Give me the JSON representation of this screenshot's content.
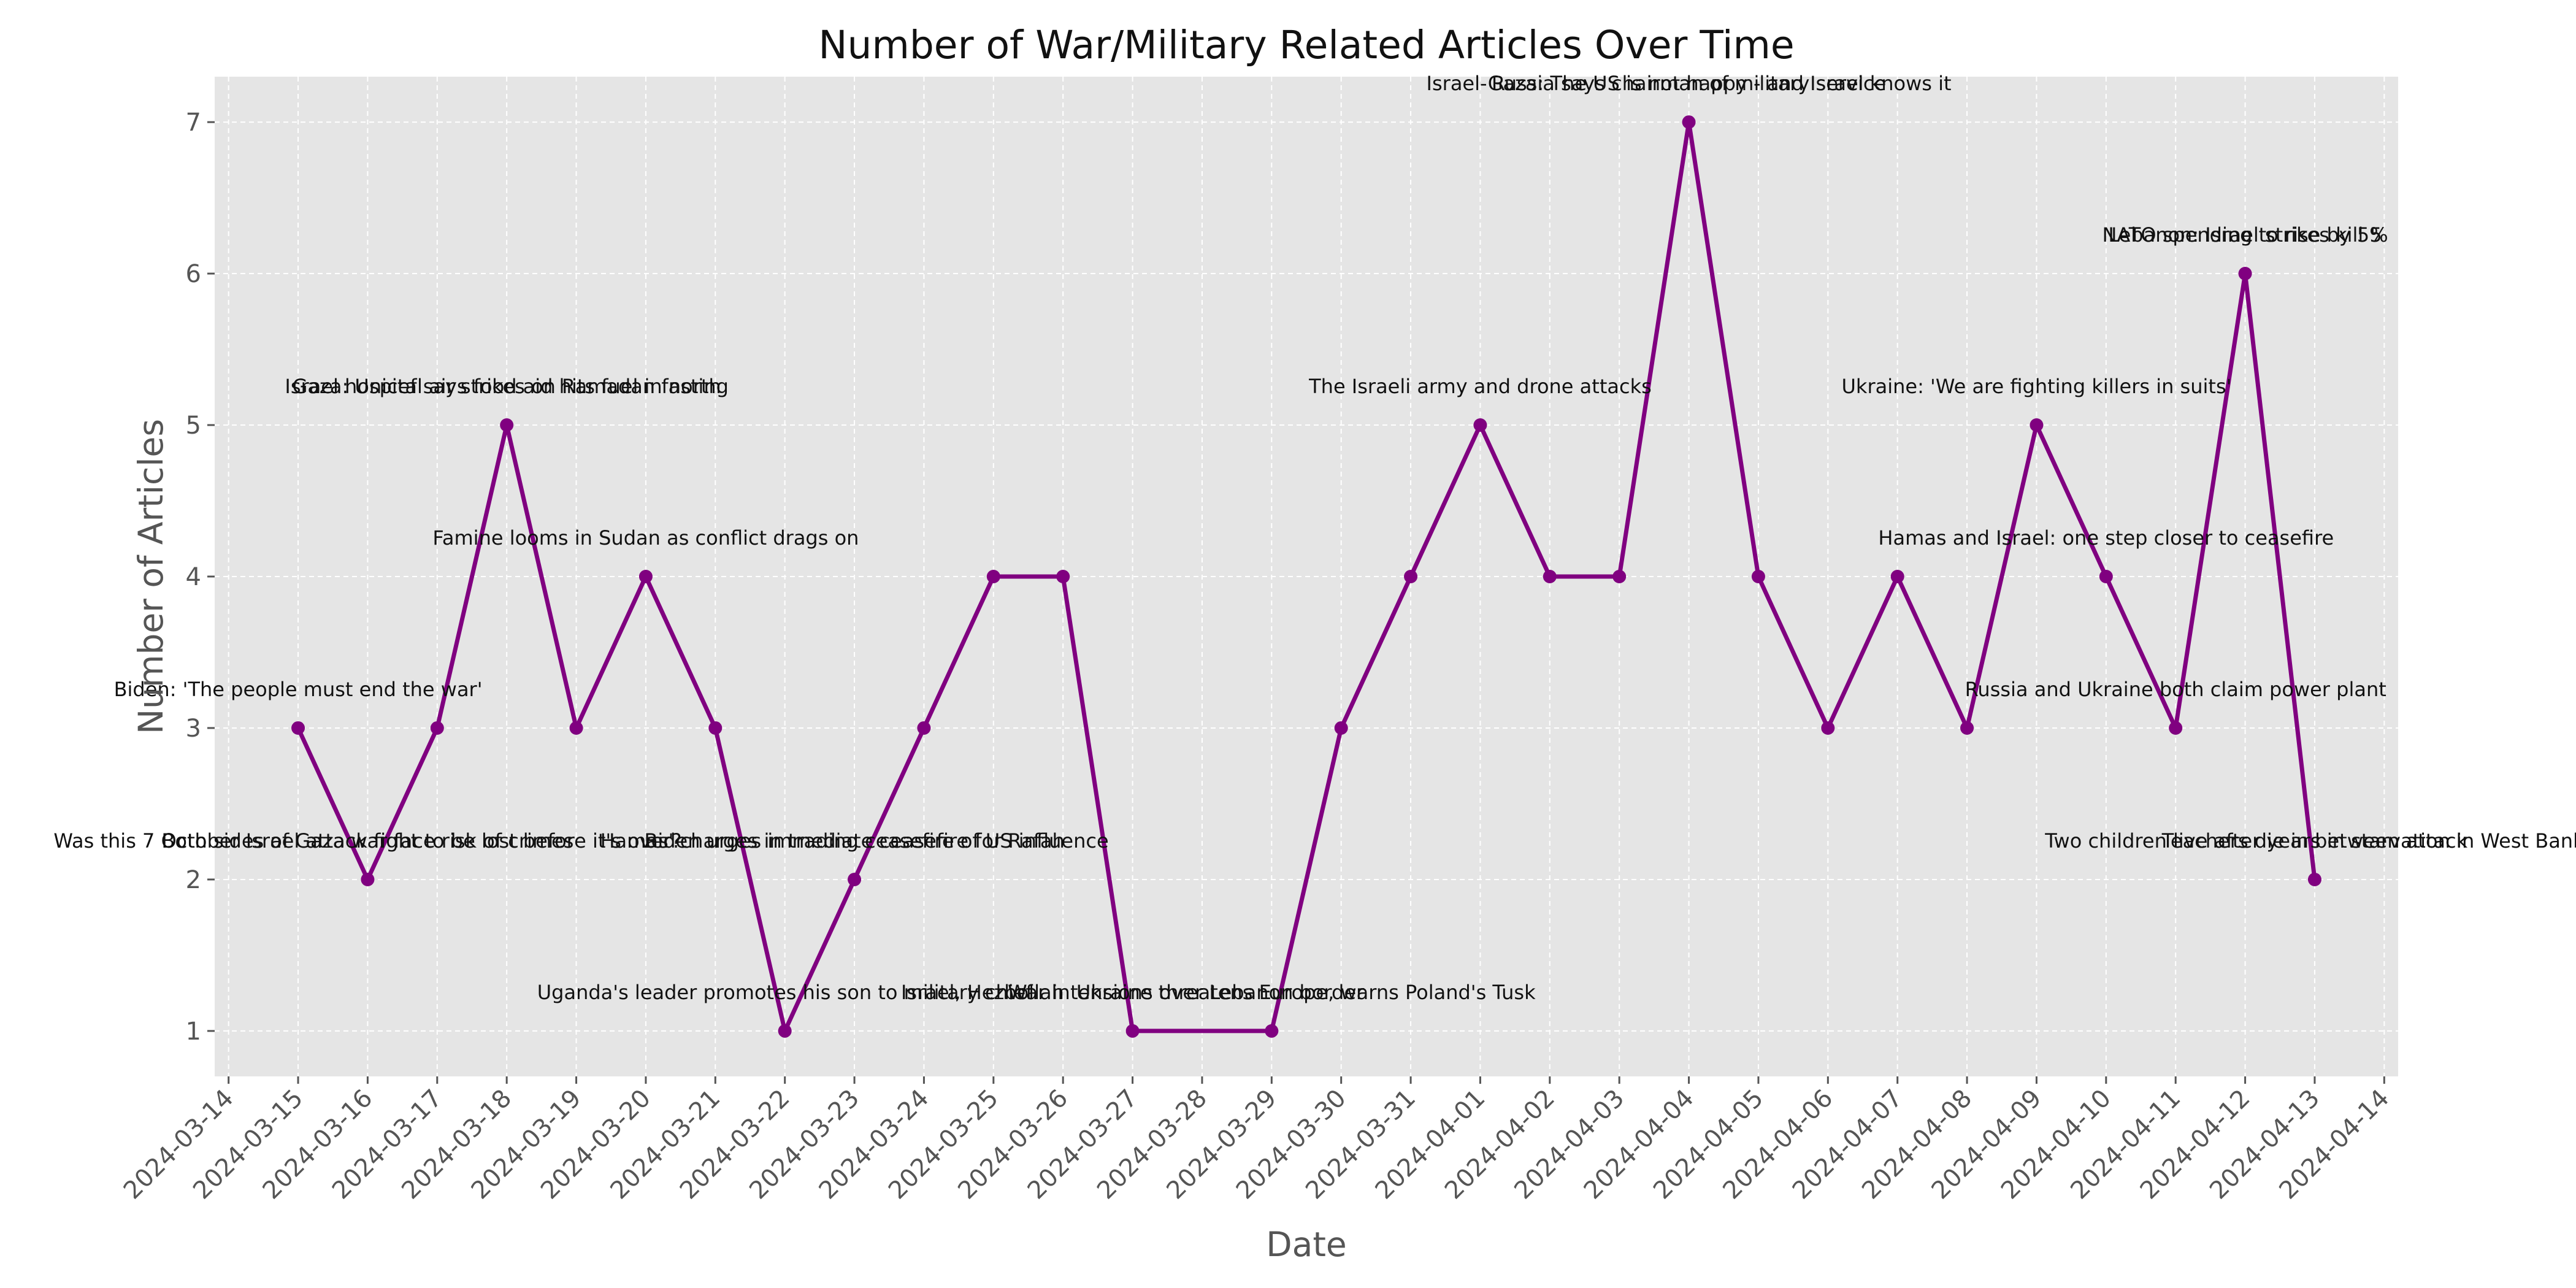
{
  "chart_data": {
    "type": "line",
    "title": "Number of War/Military Related Articles Over Time",
    "xlabel": "Date",
    "ylabel": "Number of Articles",
    "grid": true,
    "background": "#e5e5e5",
    "line_color": "#800080",
    "yticks": [
      1,
      2,
      3,
      4,
      5,
      6,
      7
    ],
    "ylim": [
      0.7,
      7.3
    ],
    "xlim": [
      "2024-03-13.8",
      "2024-04-14.2"
    ],
    "xticks": [
      "2024-03-14",
      "2024-03-15",
      "2024-03-16",
      "2024-03-17",
      "2024-03-18",
      "2024-03-19",
      "2024-03-20",
      "2024-03-21",
      "2024-03-22",
      "2024-03-23",
      "2024-03-24",
      "2024-03-25",
      "2024-03-26",
      "2024-03-27",
      "2024-03-28",
      "2024-03-29",
      "2024-03-30",
      "2024-03-31",
      "2024-04-01",
      "2024-04-02",
      "2024-04-03",
      "2024-04-04",
      "2024-04-05",
      "2024-04-06",
      "2024-04-07",
      "2024-04-08",
      "2024-04-09",
      "2024-04-10",
      "2024-04-11",
      "2024-04-12",
      "2024-04-13",
      "2024-04-14"
    ],
    "points": [
      {
        "x": "2024-03-15",
        "y": 3
      },
      {
        "x": "2024-03-16",
        "y": 2
      },
      {
        "x": "2024-03-17",
        "y": 3
      },
      {
        "x": "2024-03-18",
        "y": 5
      },
      {
        "x": "2024-03-19",
        "y": 3
      },
      {
        "x": "2024-03-20",
        "y": 4
      },
      {
        "x": "2024-03-21",
        "y": 3
      },
      {
        "x": "2024-03-22",
        "y": 1
      },
      {
        "x": "2024-03-23",
        "y": 2
      },
      {
        "x": "2024-03-24",
        "y": 3
      },
      {
        "x": "2024-03-25",
        "y": 4
      },
      {
        "x": "2024-03-26",
        "y": 4
      },
      {
        "x": "2024-03-27",
        "y": 1
      },
      {
        "x": "2024-03-29",
        "y": 1
      },
      {
        "x": "2024-03-30",
        "y": 3
      },
      {
        "x": "2024-03-31",
        "y": 4
      },
      {
        "x": "2024-04-01",
        "y": 5
      },
      {
        "x": "2024-04-02",
        "y": 4
      },
      {
        "x": "2024-04-03",
        "y": 4
      },
      {
        "x": "2024-04-04",
        "y": 7
      },
      {
        "x": "2024-04-05",
        "y": 4
      },
      {
        "x": "2024-04-06",
        "y": 3
      },
      {
        "x": "2024-04-07",
        "y": 4
      },
      {
        "x": "2024-04-08",
        "y": 3
      },
      {
        "x": "2024-04-09",
        "y": 5
      },
      {
        "x": "2024-04-10",
        "y": 4
      },
      {
        "x": "2024-04-11",
        "y": 3
      },
      {
        "x": "2024-04-12",
        "y": 6
      },
      {
        "x": "2024-04-13",
        "y": 2
      }
    ],
    "annotations": [
      {
        "x": "2024-03-16",
        "y": 2,
        "text": "Was this 7 October Israel attack fight to be lost before it's over?"
      },
      {
        "x": "2024-03-16",
        "y": 2,
        "text": "Both sides of Gaza war face risk of crimes"
      },
      {
        "x": "2024-03-22",
        "y": 1,
        "text": "Uganda's leader promotes his son to military chief"
      },
      {
        "x": "2024-03-23",
        "y": 2,
        "text": "Hamas' charges in trading ceasefire of US influence"
      },
      {
        "x": "2024-03-23",
        "y": 2,
        "text": "Biden urges immediate ceasefire for Rafah"
      },
      {
        "x": "2024-03-27",
        "y": 1,
        "text": "Israel, Hezbollah tensions over Lebanon border"
      },
      {
        "x": "2024-03-29",
        "y": 1,
        "text": "War in Ukraine threatens Europe, warns Poland's Tusk"
      },
      {
        "x": "2024-04-13",
        "y": 2,
        "text": "Two children live after years in starvation in West Bank"
      },
      {
        "x": "2024-04-13",
        "y": 2,
        "text": "Teachers die in between attack"
      },
      {
        "x": "2024-04-04",
        "y": 7,
        "text": "Russia says chairman of military service"
      },
      {
        "x": "2024-04-04",
        "y": 7,
        "text": "Israel-Gaza: The US is not happy - and Israel knows it"
      },
      {
        "x": "2024-04-12",
        "y": 6,
        "text": "Lebanon: Israel strikes kill 5"
      },
      {
        "x": "2024-04-12",
        "y": 6,
        "text": "NATO spending to rise by 5%"
      },
      {
        "x": "2024-03-18",
        "y": 5,
        "text": "Gaza: Unicef says food aid hits fuel in north"
      },
      {
        "x": "2024-03-18",
        "y": 5,
        "text": "Israel hospital air strikes on Ramadan fasting"
      },
      {
        "x": "2024-04-01",
        "y": 5,
        "text": "The Israeli army and drone attacks"
      },
      {
        "x": "2024-04-09",
        "y": 5,
        "text": "Ukraine: 'We are fighting killers in suits'"
      },
      {
        "x": "2024-03-20",
        "y": 4,
        "text": "Famine looms in Sudan as conflict drags on"
      },
      {
        "x": "2024-04-10",
        "y": 4,
        "text": "Hamas and Israel: one step closer to ceasefire"
      },
      {
        "x": "2024-03-15",
        "y": 3,
        "text": "Biden: 'The people must end the war'"
      },
      {
        "x": "2024-04-11",
        "y": 3,
        "text": "Russia and Ukraine both claim power plant"
      }
    ]
  }
}
